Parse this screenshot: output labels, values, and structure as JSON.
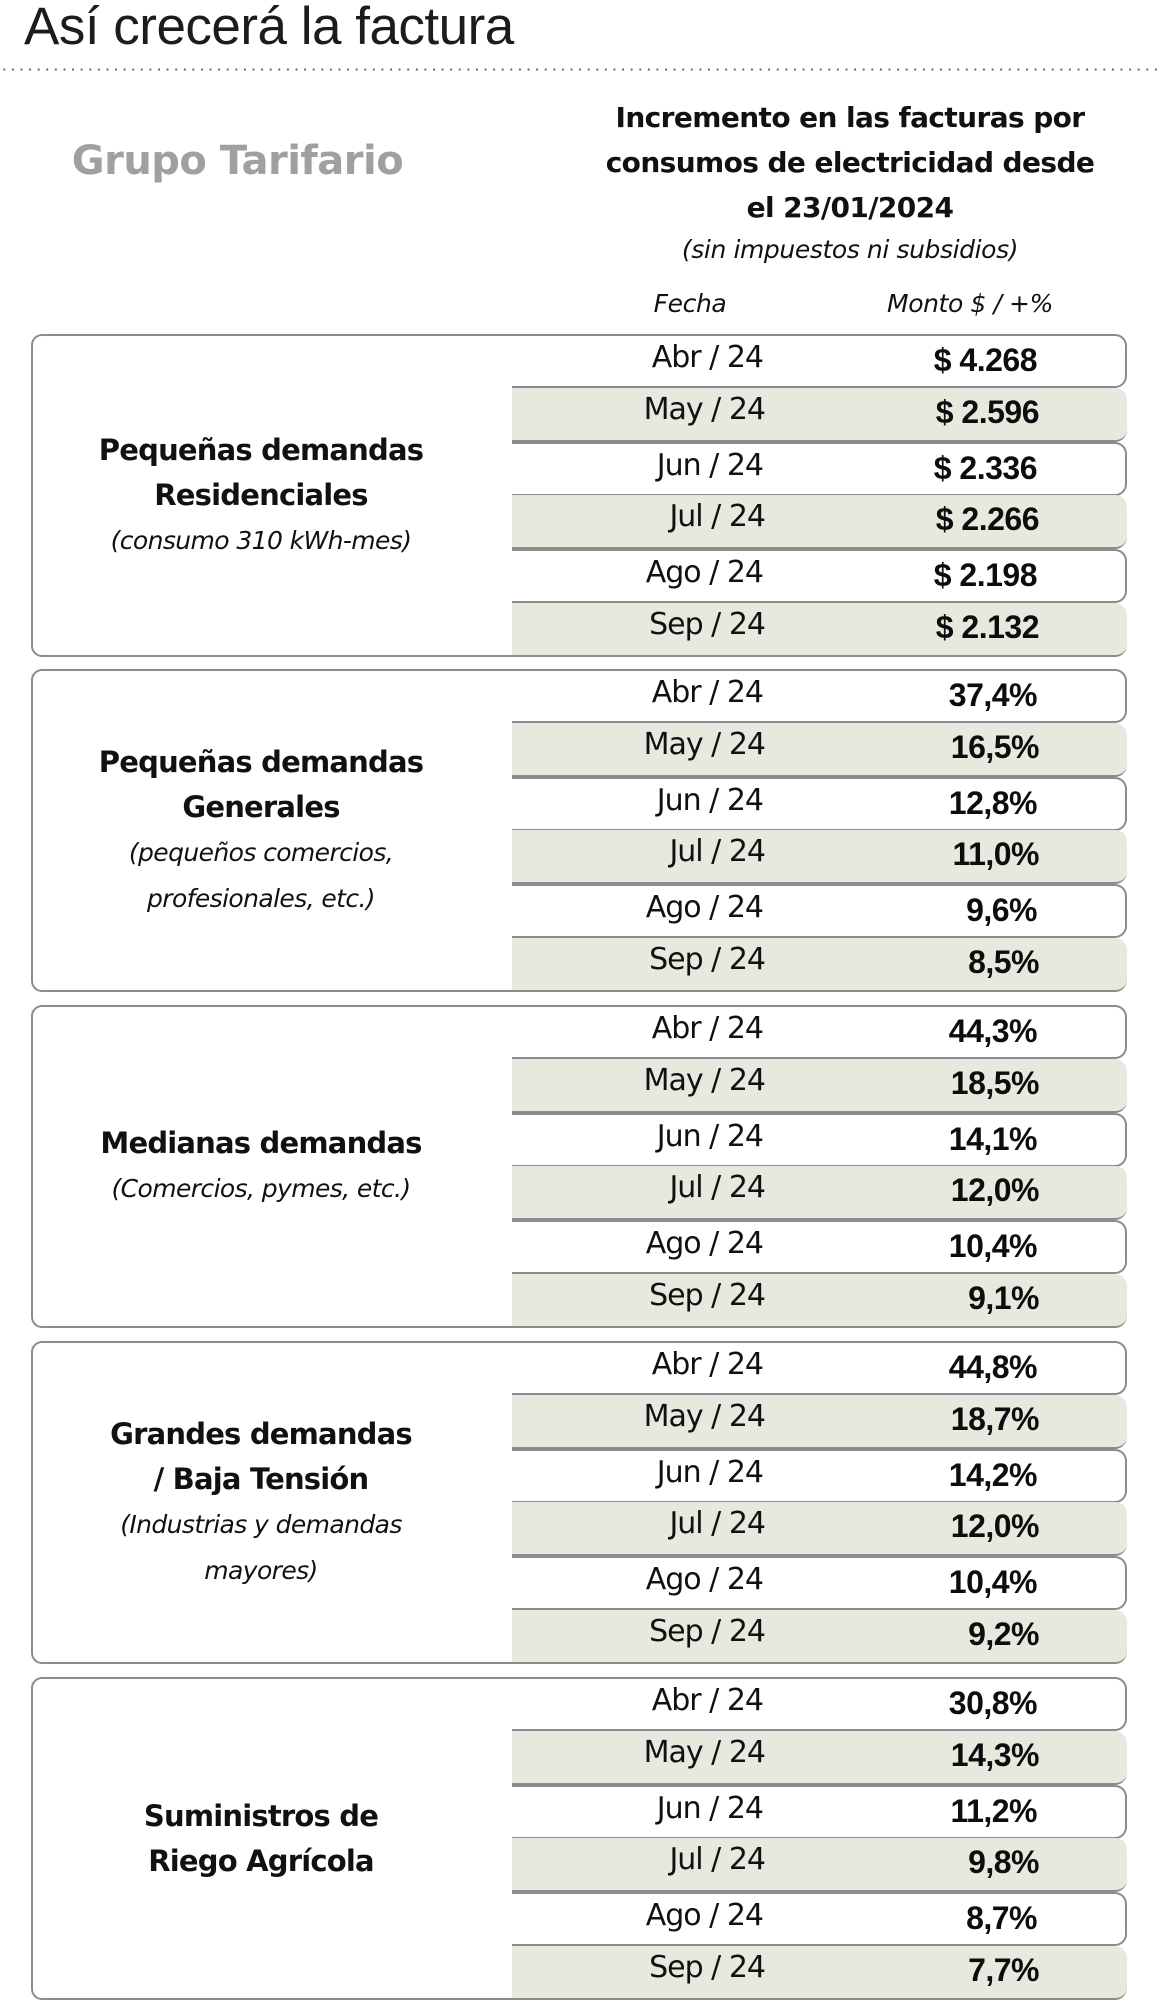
{
  "title": "Así crecerá la factura",
  "header": {
    "left": "Grupo Tarifario",
    "right_lines": [
      "Incremento en las facturas  por",
      "consumos de electricidad desde",
      "el 23/01/2024"
    ],
    "right_note": "(sin impuestos ni subsidios)",
    "col_fecha": "Fecha",
    "col_monto": "Monto $ / +%"
  },
  "colors": {
    "shaded_row": "#e8e8df",
    "border": "#8c8c8c",
    "group_head": "#a0a0a0"
  },
  "groups": [
    {
      "name_lines": [
        "Pequeñas demandas",
        "Residenciales"
      ],
      "note_lines": [
        "(consumo 310 kWh-mes)"
      ],
      "rows": [
        {
          "fecha": "Abr / 24",
          "valor": "$ 4.268"
        },
        {
          "fecha": "May / 24",
          "valor": "$ 2.596"
        },
        {
          "fecha": "Jun / 24",
          "valor": "$ 2.336"
        },
        {
          "fecha": "Jul / 24",
          "valor": "$ 2.266"
        },
        {
          "fecha": "Ago / 24",
          "valor": "$ 2.198"
        },
        {
          "fecha": "Sep / 24",
          "valor": "$ 2.132"
        }
      ]
    },
    {
      "name_lines": [
        "Pequeñas demandas",
        "Generales"
      ],
      "note_lines": [
        "(pequeños comercios,",
        "profesionales, etc.)"
      ],
      "rows": [
        {
          "fecha": "Abr / 24",
          "valor": "37,4%"
        },
        {
          "fecha": "May / 24",
          "valor": "16,5%"
        },
        {
          "fecha": "Jun / 24",
          "valor": "12,8%"
        },
        {
          "fecha": "Jul / 24",
          "valor": "11,0%"
        },
        {
          "fecha": "Ago / 24",
          "valor": "9,6%"
        },
        {
          "fecha": "Sep / 24",
          "valor": "8,5%"
        }
      ]
    },
    {
      "name_lines": [
        "Medianas demandas"
      ],
      "note_lines": [
        "(Comercios, pymes, etc.)"
      ],
      "rows": [
        {
          "fecha": "Abr / 24",
          "valor": "44,3%"
        },
        {
          "fecha": "May / 24",
          "valor": "18,5%"
        },
        {
          "fecha": "Jun / 24",
          "valor": "14,1%"
        },
        {
          "fecha": "Jul / 24",
          "valor": "12,0%"
        },
        {
          "fecha": "Ago / 24",
          "valor": "10,4%"
        },
        {
          "fecha": "Sep / 24",
          "valor": "9,1%"
        }
      ]
    },
    {
      "name_lines": [
        "Grandes demandas",
        "/ Baja Tensión"
      ],
      "note_lines": [
        "(Industrias y demandas",
        "mayores)"
      ],
      "rows": [
        {
          "fecha": "Abr / 24",
          "valor": "44,8%"
        },
        {
          "fecha": "May / 24",
          "valor": "18,7%"
        },
        {
          "fecha": "Jun / 24",
          "valor": "14,2%"
        },
        {
          "fecha": "Jul / 24",
          "valor": "12,0%"
        },
        {
          "fecha": "Ago / 24",
          "valor": "10,4%"
        },
        {
          "fecha": "Sep / 24",
          "valor": "9,2%"
        }
      ]
    },
    {
      "name_lines": [
        "Suministros de",
        "Riego Agrícola"
      ],
      "note_lines": [],
      "rows": [
        {
          "fecha": "Abr / 24",
          "valor": "30,8%"
        },
        {
          "fecha": "May / 24",
          "valor": "14,3%"
        },
        {
          "fecha": "Jun / 24",
          "valor": "11,2%"
        },
        {
          "fecha": "Jul / 24",
          "valor": "9,8%"
        },
        {
          "fecha": "Ago / 24",
          "valor": "8,7%"
        },
        {
          "fecha": "Sep / 24",
          "valor": "7,7%"
        }
      ]
    }
  ]
}
